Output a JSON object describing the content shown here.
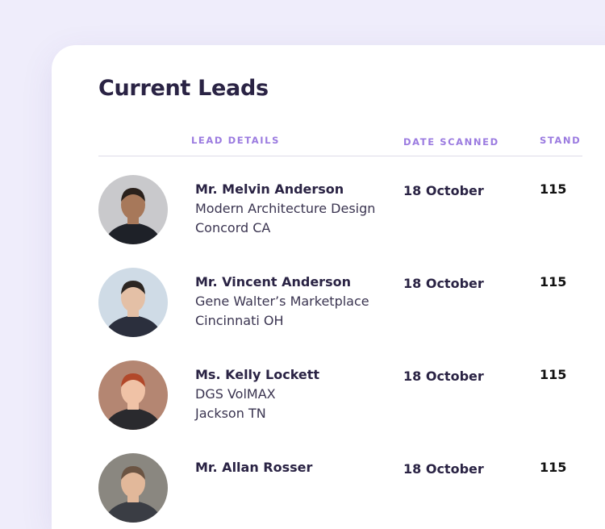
{
  "header": {
    "title": "Current Leads"
  },
  "table": {
    "columns": [
      "LEAD DETAILS",
      "DATE SCANNED",
      "STAND"
    ],
    "rows": [
      {
        "name": "Mr. Melvin Anderson",
        "company": "Modern Architecture Design",
        "location": "Concord CA",
        "date": "18 October",
        "stand": "115"
      },
      {
        "name": "Mr. Vincent Anderson",
        "company": "Gene Walter’s Marketplace",
        "location": "Cincinnati OH",
        "date": "18 October",
        "stand": "115"
      },
      {
        "name": "Ms. Kelly Lockett",
        "company": "DGS VolMAX",
        "location": "Jackson TN",
        "date": "18 October",
        "stand": "115"
      },
      {
        "name": "Mr. Allan Rosser",
        "date": "18 October",
        "stand": "115"
      }
    ]
  }
}
